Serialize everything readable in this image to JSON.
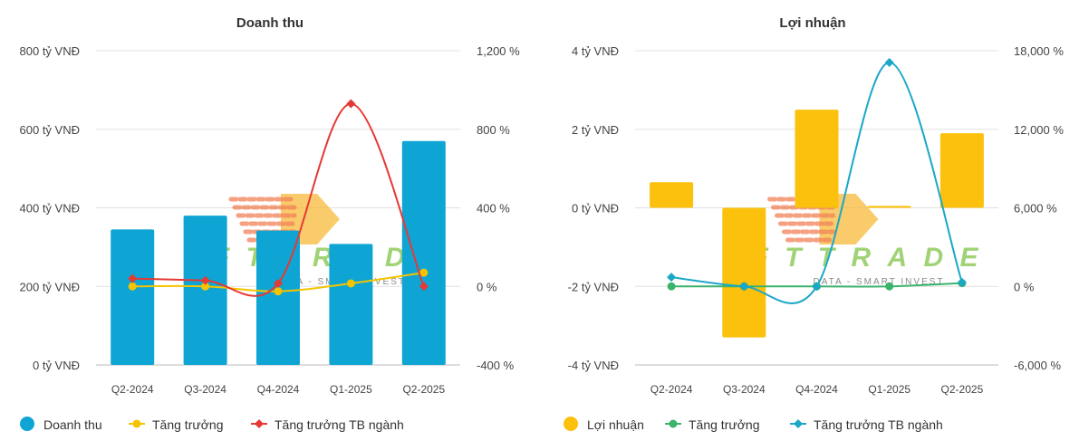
{
  "chart_data": [
    {
      "type": "bar",
      "title": "Doanh thu",
      "categories": [
        "Q2-2024",
        "Q3-2024",
        "Q4-2024",
        "Q1-2025",
        "Q2-2025"
      ],
      "y_left": {
        "min": 0,
        "max": 800,
        "ticks": [
          0,
          200,
          400,
          600,
          800
        ],
        "tick_labels": [
          "0 tỷ VNĐ",
          "200 tỷ VNĐ",
          "400 tỷ VNĐ",
          "600 tỷ VNĐ",
          "800 tỷ VNĐ"
        ]
      },
      "y_right": {
        "min": -400,
        "max": 1200,
        "ticks": [
          -400,
          0,
          400,
          800,
          1200
        ],
        "tick_labels": [
          "-400 %",
          "0 %",
          "400 %",
          "800 %",
          "1,200 %"
        ]
      },
      "series": [
        {
          "name": "Doanh thu",
          "kind": "bar",
          "axis": "left",
          "color": "#0ea5d4",
          "values": [
            345,
            380,
            342,
            308,
            570
          ]
        },
        {
          "name": "Tăng trưởng",
          "kind": "line",
          "axis": "right",
          "color": "#f5c400",
          "marker": "circle",
          "values": [
            0,
            0,
            -25,
            15,
            70
          ]
        },
        {
          "name": "Tăng trưởng TB ngành",
          "kind": "line",
          "axis": "right",
          "color": "#e53935",
          "marker": "diamond",
          "values": [
            40,
            30,
            15,
            930,
            0
          ]
        }
      ],
      "legend": {
        "position": "bottom-left"
      },
      "grid": true
    },
    {
      "type": "bar",
      "title": "Lợi nhuận",
      "categories": [
        "Q2-2024",
        "Q3-2024",
        "Q4-2024",
        "Q1-2025",
        "Q2-2025"
      ],
      "y_left": {
        "min": -4,
        "max": 4,
        "ticks": [
          -4,
          -2,
          0,
          2,
          4
        ],
        "tick_labels": [
          "-4 tỷ VNĐ",
          "-2 tỷ VNĐ",
          "0 tỷ VNĐ",
          "2 tỷ VNĐ",
          "4 tỷ VNĐ"
        ]
      },
      "y_right": {
        "min": -6000,
        "max": 18000,
        "ticks": [
          -6000,
          0,
          6000,
          12000,
          18000
        ],
        "tick_labels": [
          "-6,000 %",
          "0 %",
          "6,000 %",
          "12,000 %",
          "18,000 %"
        ]
      },
      "series": [
        {
          "name": "Lợi nhuận",
          "kind": "bar",
          "axis": "left",
          "color": "#fbc10c",
          "values": [
            0.65,
            -3.3,
            2.5,
            0.05,
            1.9
          ]
        },
        {
          "name": "Tăng trưởng",
          "kind": "line",
          "axis": "right",
          "color": "#3bb36b",
          "marker": "circle",
          "values": [
            0,
            0,
            0,
            0,
            250
          ]
        },
        {
          "name": "Tăng trưởng TB ngành",
          "kind": "line",
          "axis": "right",
          "color": "#1aa7c8",
          "marker": "diamond",
          "values": [
            700,
            0,
            0,
            17100,
            300
          ]
        }
      ],
      "legend": {
        "position": "bottom-left"
      },
      "grid": true
    }
  ],
  "watermark": {
    "brand": "FTTRADE",
    "tagline": "DATA - SMART INVEST"
  }
}
